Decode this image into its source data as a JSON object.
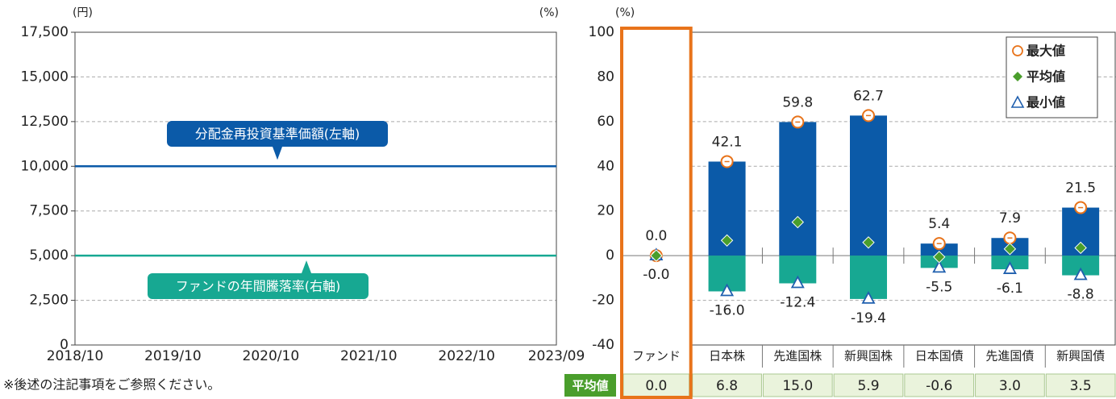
{
  "chart_data": [
    {
      "type": "line",
      "y_unit_label": "(円)",
      "y2_unit_label": "(%)",
      "x": [
        "2018/10",
        "2019/10",
        "2020/10",
        "2021/10",
        "2022/10",
        "2023/09"
      ],
      "ylim": [
        0,
        17500
      ],
      "yticks": [
        0,
        {
          "value": 2500,
          "label": "2,500"
        },
        {
          "value": 5000,
          "label": "5,000"
        },
        {
          "value": 7500,
          "label": "7,500"
        },
        {
          "value": 10000,
          "label": "10,000"
        },
        {
          "value": 12500,
          "label": "12,500"
        },
        {
          "value": 15000,
          "label": "15,000"
        },
        {
          "value": 17500,
          "label": "17,500"
        }
      ],
      "y2lim": [
        -40,
        100
      ],
      "grid": true,
      "series": [
        {
          "name": "分配金再投資基準価額(左軸)",
          "color": "#0b5aa8",
          "values": [
            10000,
            10000,
            10000,
            10000,
            10000,
            10000
          ]
        },
        {
          "name": "ファンドの年間騰落率(右軸)",
          "color": "#17a892",
          "axis": "y2",
          "values": [
            0,
            0,
            0,
            0,
            0,
            0
          ]
        }
      ]
    },
    {
      "type": "bar",
      "y_unit_label": "(%)",
      "categories": [
        "ファンド",
        "日本株",
        "先進国株",
        "新興国株",
        "日本国債",
        "先進国債",
        "新興国債"
      ],
      "ylim": [
        -40,
        100
      ],
      "yticks": [
        -40,
        -20,
        0,
        20,
        40,
        60,
        80,
        100
      ],
      "grid": true,
      "legend": "upper right",
      "series": [
        {
          "name": "最大値",
          "color": "#e8731a",
          "bar_color": "#0b5aa8",
          "values": [
            0.0,
            42.1,
            59.8,
            62.7,
            5.4,
            7.9,
            21.5
          ],
          "value_labels": [
            "0.0",
            "42.1",
            "59.8",
            "62.7",
            "5.4",
            "7.9",
            "21.5"
          ]
        },
        {
          "name": "平均値",
          "color": "#4a9e2c",
          "values": [
            0.0,
            6.8,
            15.0,
            5.9,
            -0.6,
            3.0,
            3.5
          ],
          "value_labels": [
            "0.0",
            "6.8",
            "15.0",
            "5.9",
            "-0.6",
            "3.0",
            "3.5"
          ]
        },
        {
          "name": "最小値",
          "color": "#1f5fae",
          "bar_color": "#17a892",
          "values": [
            0,
            -16.0,
            -12.4,
            -19.4,
            -5.5,
            -6.1,
            -8.8
          ],
          "value_labels": [
            "-0.0",
            "-16.0",
            "-12.4",
            "-19.4",
            "-5.5",
            "-6.1",
            "-8.8"
          ]
        }
      ]
    }
  ],
  "footnote": "※後述の注記事項をご参照ください。"
}
